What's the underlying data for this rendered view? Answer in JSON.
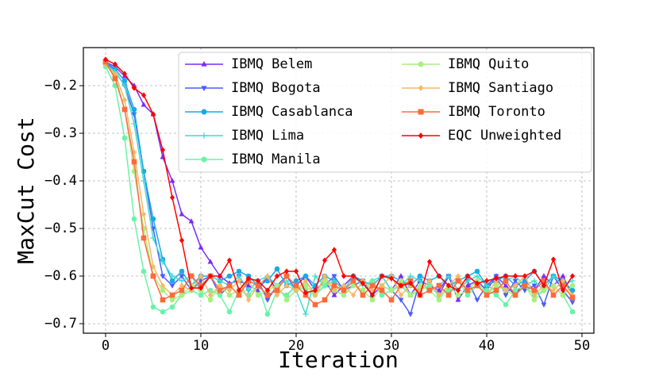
{
  "chart_data": {
    "type": "line",
    "xlabel": "Iteration",
    "ylabel": "MaxCut Cost",
    "x": [
      0,
      1,
      2,
      3,
      4,
      5,
      6,
      7,
      8,
      9,
      10,
      11,
      12,
      13,
      14,
      15,
      16,
      17,
      18,
      19,
      20,
      21,
      22,
      23,
      24,
      25,
      26,
      27,
      28,
      29,
      30,
      31,
      32,
      33,
      34,
      35,
      36,
      37,
      38,
      39,
      40,
      41,
      42,
      43,
      44,
      45,
      46,
      47,
      48,
      49
    ],
    "xlim": [
      -2.33,
      51.25
    ],
    "xticks": [
      0,
      10,
      20,
      30,
      40,
      50
    ],
    "ylim": [
      -0.72,
      -0.12
    ],
    "yticks": [
      {
        "value": -0.2,
        "label": "−0.2"
      },
      {
        "value": -0.3,
        "label": "−0.3"
      },
      {
        "value": -0.4,
        "label": "−0.4"
      },
      {
        "value": -0.5,
        "label": "−0.5"
      },
      {
        "value": -0.6,
        "label": "−0.6"
      },
      {
        "value": -0.7,
        "label": "−0.7"
      }
    ],
    "grid": true,
    "legend": "upper right",
    "series": [
      {
        "name": "IBMQ Belem",
        "color": "#7b2bf9",
        "marker": "triangle-up",
        "values": [
          -0.15,
          -0.16,
          -0.18,
          -0.2,
          -0.24,
          -0.26,
          -0.35,
          -0.4,
          -0.47,
          -0.485,
          -0.54,
          -0.57,
          -0.6,
          -0.615,
          -0.61,
          -0.62,
          -0.63,
          -0.6,
          -0.63,
          -0.64,
          -0.62,
          -0.6,
          -0.63,
          -0.61,
          -0.64,
          -0.62,
          -0.6,
          -0.61,
          -0.64,
          -0.62,
          -0.63,
          -0.6,
          -0.64,
          -0.61,
          -0.62,
          -0.63,
          -0.6,
          -0.65,
          -0.62,
          -0.61,
          -0.63,
          -0.6,
          -0.62,
          -0.64,
          -0.61,
          -0.63,
          -0.6,
          -0.62,
          -0.6,
          -0.64
        ]
      },
      {
        "name": "IBMQ Bogota",
        "color": "#4a5dfb",
        "marker": "triangle-down",
        "values": [
          -0.15,
          -0.17,
          -0.2,
          -0.26,
          -0.38,
          -0.5,
          -0.6,
          -0.62,
          -0.6,
          -0.63,
          -0.61,
          -0.6,
          -0.64,
          -0.62,
          -0.6,
          -0.63,
          -0.61,
          -0.65,
          -0.62,
          -0.6,
          -0.63,
          -0.61,
          -0.64,
          -0.62,
          -0.6,
          -0.63,
          -0.62,
          -0.61,
          -0.64,
          -0.6,
          -0.63,
          -0.65,
          -0.68,
          -0.61,
          -0.62,
          -0.64,
          -0.6,
          -0.63,
          -0.61,
          -0.65,
          -0.62,
          -0.6,
          -0.64,
          -0.61,
          -0.63,
          -0.62,
          -0.66,
          -0.6,
          -0.63,
          -0.655
        ]
      },
      {
        "name": "IBMQ Casablanca",
        "color": "#18a9e8",
        "marker": "circle",
        "values": [
          -0.15,
          -0.165,
          -0.19,
          -0.25,
          -0.38,
          -0.48,
          -0.565,
          -0.61,
          -0.59,
          -0.62,
          -0.6,
          -0.6,
          -0.61,
          -0.6,
          -0.59,
          -0.6,
          -0.62,
          -0.61,
          -0.585,
          -0.62,
          -0.61,
          -0.6,
          -0.62,
          -0.6,
          -0.61,
          -0.63,
          -0.6,
          -0.61,
          -0.62,
          -0.6,
          -0.6,
          -0.61,
          -0.62,
          -0.6,
          -0.61,
          -0.6,
          -0.62,
          -0.61,
          -0.6,
          -0.59,
          -0.62,
          -0.61,
          -0.6,
          -0.62,
          -0.61,
          -0.59,
          -0.62,
          -0.6,
          -0.61,
          -0.63
        ]
      },
      {
        "name": "IBMQ Lima",
        "color": "#3fdcd2",
        "marker": "plus",
        "values": [
          -0.155,
          -0.17,
          -0.2,
          -0.28,
          -0.4,
          -0.52,
          -0.57,
          -0.6,
          -0.61,
          -0.6,
          -0.63,
          -0.6,
          -0.61,
          -0.62,
          -0.6,
          -0.63,
          -0.61,
          -0.6,
          -0.62,
          -0.61,
          -0.63,
          -0.68,
          -0.6,
          -0.62,
          -0.61,
          -0.63,
          -0.6,
          -0.62,
          -0.61,
          -0.6,
          -0.63,
          -0.62,
          -0.6,
          -0.61,
          -0.63,
          -0.62,
          -0.6,
          -0.63,
          -0.61,
          -0.6,
          -0.62,
          -0.63,
          -0.61,
          -0.6,
          -0.62,
          -0.61,
          -0.63,
          -0.6,
          -0.62,
          -0.61
        ]
      },
      {
        "name": "IBMQ Manila",
        "color": "#6af3a8",
        "marker": "circle",
        "values": [
          -0.16,
          -0.2,
          -0.31,
          -0.48,
          -0.59,
          -0.665,
          -0.675,
          -0.665,
          -0.64,
          -0.63,
          -0.64,
          -0.63,
          -0.64,
          -0.675,
          -0.63,
          -0.64,
          -0.62,
          -0.68,
          -0.63,
          -0.64,
          -0.62,
          -0.63,
          -0.64,
          -0.62,
          -0.63,
          -0.64,
          -0.62,
          -0.63,
          -0.61,
          -0.64,
          -0.63,
          -0.62,
          -0.64,
          -0.63,
          -0.62,
          -0.64,
          -0.63,
          -0.61,
          -0.64,
          -0.62,
          -0.63,
          -0.64,
          -0.66,
          -0.63,
          -0.62,
          -0.64,
          -0.63,
          -0.62,
          -0.64,
          -0.675
        ]
      },
      {
        "name": "IBMQ Quito",
        "color": "#a6f07e",
        "marker": "circle",
        "values": [
          -0.155,
          -0.18,
          -0.25,
          -0.38,
          -0.5,
          -0.6,
          -0.63,
          -0.65,
          -0.64,
          -0.62,
          -0.63,
          -0.65,
          -0.62,
          -0.64,
          -0.63,
          -0.61,
          -0.64,
          -0.63,
          -0.62,
          -0.65,
          -0.63,
          -0.62,
          -0.64,
          -0.61,
          -0.63,
          -0.64,
          -0.62,
          -0.63,
          -0.65,
          -0.62,
          -0.63,
          -0.61,
          -0.64,
          -0.62,
          -0.63,
          -0.65,
          -0.62,
          -0.64,
          -0.63,
          -0.61,
          -0.64,
          -0.62,
          -0.63,
          -0.64,
          -0.62,
          -0.65,
          -0.63,
          -0.62,
          -0.64,
          -0.62
        ]
      },
      {
        "name": "IBMQ Santiago",
        "color": "#f5b865",
        "marker": "diamond",
        "values": [
          -0.155,
          -0.175,
          -0.23,
          -0.34,
          -0.47,
          -0.58,
          -0.62,
          -0.64,
          -0.62,
          -0.63,
          -0.6,
          -0.64,
          -0.62,
          -0.63,
          -0.61,
          -0.65,
          -0.62,
          -0.6,
          -0.64,
          -0.62,
          -0.63,
          -0.61,
          -0.64,
          -0.6,
          -0.63,
          -0.62,
          -0.64,
          -0.61,
          -0.63,
          -0.62,
          -0.6,
          -0.64,
          -0.62,
          -0.63,
          -0.61,
          -0.64,
          -0.62,
          -0.6,
          -0.63,
          -0.62,
          -0.64,
          -0.61,
          -0.63,
          -0.62,
          -0.6,
          -0.64,
          -0.62,
          -0.63,
          -0.61,
          -0.64
        ]
      },
      {
        "name": "IBMQ Toronto",
        "color": "#ff6a3a",
        "marker": "square",
        "values": [
          -0.15,
          -0.185,
          -0.25,
          -0.36,
          -0.52,
          -0.6,
          -0.65,
          -0.64,
          -0.63,
          -0.6,
          -0.62,
          -0.6,
          -0.63,
          -0.62,
          -0.64,
          -0.61,
          -0.62,
          -0.64,
          -0.63,
          -0.6,
          -0.62,
          -0.64,
          -0.66,
          -0.65,
          -0.62,
          -0.63,
          -0.61,
          -0.64,
          -0.62,
          -0.63,
          -0.65,
          -0.62,
          -0.61,
          -0.64,
          -0.63,
          -0.62,
          -0.64,
          -0.61,
          -0.63,
          -0.62,
          -0.64,
          -0.63,
          -0.61,
          -0.64,
          -0.62,
          -0.63,
          -0.61,
          -0.64,
          -0.62,
          -0.645
        ]
      },
      {
        "name": "EQC Unweighted",
        "color": "#ff0000",
        "marker": "diamond",
        "values": [
          -0.145,
          -0.155,
          -0.175,
          -0.205,
          -0.22,
          -0.26,
          -0.335,
          -0.435,
          -0.525,
          -0.625,
          -0.625,
          -0.6,
          -0.6,
          -0.567,
          -0.63,
          -0.605,
          -0.61,
          -0.63,
          -0.6,
          -0.59,
          -0.59,
          -0.635,
          -0.63,
          -0.567,
          -0.545,
          -0.6,
          -0.6,
          -0.615,
          -0.64,
          -0.6,
          -0.605,
          -0.62,
          -0.615,
          -0.64,
          -0.57,
          -0.6,
          -0.62,
          -0.63,
          -0.6,
          -0.615,
          -0.61,
          -0.605,
          -0.6,
          -0.6,
          -0.6,
          -0.59,
          -0.62,
          -0.565,
          -0.63,
          -0.6
        ]
      }
    ]
  }
}
